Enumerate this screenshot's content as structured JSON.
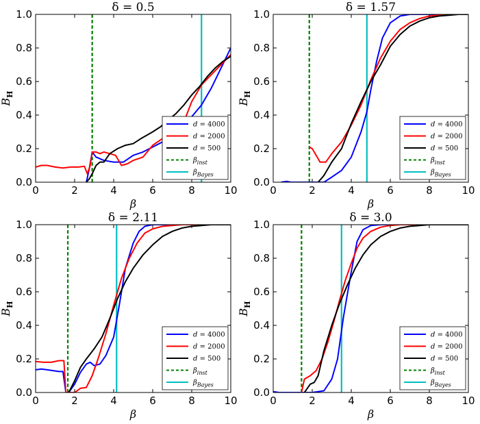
{
  "chart_data": [
    {
      "type": "line",
      "title": "δ = 0.5",
      "xlabel": "β",
      "ylabel": "B_H",
      "xlim": [
        0,
        10
      ],
      "ylim": [
        0,
        1
      ],
      "xticks": [
        "0",
        "2",
        "4",
        "6",
        "8",
        "10"
      ],
      "yticks": [
        "0.0",
        "0.2",
        "0.4",
        "0.6",
        "0.8",
        "1.0"
      ],
      "vlines": {
        "beta_inst": 2.9,
        "beta_bayes": 8.5
      },
      "legend": [
        "d = 4000",
        "d = 2000",
        "d = 500",
        "β_inst",
        "β_Bayes"
      ],
      "series": [
        {
          "name": "d = 4000",
          "x": [
            2.6,
            2.75,
            2.9,
            3.1,
            3.5,
            4.0,
            4.5,
            5.0,
            5.5,
            6.0,
            6.5,
            7.0,
            7.5,
            8.0,
            8.5,
            9.0,
            9.5,
            10.0
          ],
          "y": [
            0,
            0.08,
            0.18,
            0.15,
            0.13,
            0.12,
            0.12,
            0.16,
            0.18,
            0.21,
            0.24,
            0.28,
            0.33,
            0.39,
            0.46,
            0.56,
            0.68,
            0.8
          ]
        },
        {
          "name": "d = 2000",
          "x": [
            0,
            0.3,
            0.6,
            1.0,
            1.4,
            1.8,
            2.2,
            2.5,
            2.65,
            2.8,
            2.9,
            3.1,
            3.3,
            3.5,
            3.8,
            4.1,
            4.4,
            4.7,
            5.0,
            5.5,
            6.0,
            6.5,
            7.0,
            7.5,
            8.0,
            8.5,
            9.0,
            9.5,
            10.0
          ],
          "y": [
            0.09,
            0.1,
            0.1,
            0.09,
            0.085,
            0.09,
            0.09,
            0.095,
            0.05,
            0.1,
            0.18,
            0.18,
            0.17,
            0.18,
            0.17,
            0.16,
            0.1,
            0.11,
            0.13,
            0.15,
            0.22,
            0.26,
            0.28,
            0.33,
            0.48,
            0.58,
            0.64,
            0.7,
            0.76
          ]
        },
        {
          "name": "d = 500",
          "x": [
            2.6,
            2.75,
            2.9,
            3.1,
            3.3,
            3.5,
            3.8,
            4.2,
            4.6,
            5.0,
            5.4,
            5.7,
            6.0,
            6.4,
            6.8,
            7.2,
            7.6,
            8.0,
            8.4,
            8.8,
            9.2,
            9.6,
            10.0
          ],
          "y": [
            0,
            0.02,
            0.05,
            0.1,
            0.12,
            0.12,
            0.17,
            0.2,
            0.22,
            0.23,
            0.26,
            0.28,
            0.3,
            0.33,
            0.37,
            0.41,
            0.46,
            0.52,
            0.57,
            0.63,
            0.68,
            0.72,
            0.75
          ]
        }
      ]
    },
    {
      "type": "line",
      "title": "δ = 1.57",
      "xlabel": "β",
      "ylabel": "B_H",
      "xlim": [
        0,
        10
      ],
      "ylim": [
        0,
        1
      ],
      "xticks": [
        "0",
        "2",
        "4",
        "6",
        "8",
        "10"
      ],
      "yticks": [
        "0.0",
        "0.2",
        "0.4",
        "0.6",
        "0.8",
        "1.0"
      ],
      "vlines": {
        "beta_inst": 1.85,
        "beta_bayes": 4.8
      },
      "legend": [
        "d = 4000",
        "d = 2000",
        "d = 500",
        "β_inst",
        "β_Bayes"
      ],
      "series": [
        {
          "name": "d = 4000",
          "x": [
            0.4,
            0.7,
            0.9,
            2.6,
            3.0,
            3.5,
            4.0,
            4.5,
            4.8,
            5.0,
            5.3,
            5.6,
            6.0,
            6.5,
            7.0,
            7.5,
            8.0,
            9.0,
            10.0
          ],
          "y": [
            0,
            0.005,
            0,
            0,
            0.03,
            0.07,
            0.15,
            0.3,
            0.42,
            0.55,
            0.72,
            0.86,
            0.95,
            0.99,
            1.0,
            1.0,
            1.0,
            1.0,
            1.0
          ]
        },
        {
          "name": "d = 2000",
          "x": [
            1.85,
            2.0,
            2.2,
            2.4,
            2.7,
            3.0,
            3.5,
            4.0,
            4.5,
            5.0,
            5.5,
            6.0,
            6.5,
            7.0,
            7.5,
            8.0,
            8.5,
            9.0,
            9.5,
            10.0
          ],
          "y": [
            0.21,
            0.2,
            0.16,
            0.12,
            0.12,
            0.17,
            0.24,
            0.34,
            0.46,
            0.61,
            0.74,
            0.84,
            0.91,
            0.95,
            0.975,
            0.99,
            0.995,
            1.0,
            1.0,
            1.0
          ]
        },
        {
          "name": "d = 500",
          "x": [
            2.3,
            2.6,
            3.0,
            3.5,
            4.0,
            4.5,
            5.0,
            5.5,
            6.0,
            6.5,
            7.0,
            7.5,
            8.0,
            8.5,
            9.0,
            9.5,
            10.0
          ],
          "y": [
            0,
            0.04,
            0.12,
            0.2,
            0.35,
            0.48,
            0.6,
            0.7,
            0.81,
            0.88,
            0.93,
            0.96,
            0.98,
            0.99,
            0.995,
            1.0,
            1.0
          ]
        }
      ]
    },
    {
      "type": "line",
      "title": "δ = 2.11",
      "xlabel": "β",
      "ylabel": "B_H",
      "xlim": [
        0,
        10
      ],
      "ylim": [
        0,
        1
      ],
      "xticks": [
        "0",
        "2",
        "4",
        "6",
        "8",
        "10"
      ],
      "yticks": [
        "0.0",
        "0.2",
        "0.4",
        "0.6",
        "0.8",
        "1.0"
      ],
      "vlines": {
        "beta_inst": 1.65,
        "beta_bayes": 4.15
      },
      "legend": [
        "d = 4000",
        "d = 2000",
        "d = 500",
        "β_inst",
        "β_Bayes"
      ],
      "series": [
        {
          "name": "d = 4000",
          "x": [
            0,
            0.3,
            0.6,
            0.9,
            1.2,
            1.4,
            1.55,
            1.7,
            2.0,
            2.3,
            2.6,
            2.8,
            3.0,
            3.3,
            3.6,
            4.0,
            4.3,
            4.6,
            5.0,
            5.3,
            5.6,
            6.0,
            6.5,
            7.0,
            8.0,
            9.0,
            10.0
          ],
          "y": [
            0.135,
            0.14,
            0.135,
            0.13,
            0.125,
            0.125,
            0.0,
            0.0,
            0.05,
            0.12,
            0.17,
            0.18,
            0.16,
            0.17,
            0.22,
            0.33,
            0.53,
            0.74,
            0.89,
            0.96,
            0.99,
            1.0,
            1.0,
            1.0,
            1.0,
            1.0,
            1.0
          ]
        },
        {
          "name": "d = 2000",
          "x": [
            0,
            0.4,
            0.8,
            1.2,
            1.45,
            1.55,
            1.7,
            2.0,
            2.3,
            2.6,
            2.9,
            3.2,
            3.6,
            4.0,
            4.4,
            4.8,
            5.2,
            5.6,
            6.0,
            6.5,
            7.0,
            7.5,
            8.0,
            8.5,
            9.0,
            10.0
          ],
          "y": [
            0.185,
            0.18,
            0.18,
            0.19,
            0.19,
            0.0,
            0.0,
            0.0,
            0.025,
            0.03,
            0.1,
            0.2,
            0.35,
            0.52,
            0.68,
            0.8,
            0.89,
            0.95,
            0.975,
            0.99,
            0.995,
            1.0,
            1.0,
            1.0,
            1.0,
            1.0
          ]
        },
        {
          "name": "d = 500",
          "x": [
            1.7,
            2.0,
            2.3,
            2.6,
            3.0,
            3.4,
            3.8,
            4.2,
            4.6,
            5.0,
            5.5,
            6.0,
            6.5,
            7.0,
            7.5,
            8.0,
            8.5,
            9.0,
            9.5,
            10.0
          ],
          "y": [
            0.0,
            0.07,
            0.15,
            0.2,
            0.26,
            0.33,
            0.44,
            0.56,
            0.66,
            0.74,
            0.82,
            0.88,
            0.93,
            0.96,
            0.98,
            0.99,
            0.995,
            1.0,
            1.0,
            1.0
          ]
        }
      ]
    },
    {
      "type": "line",
      "title": "δ = 3.0",
      "xlabel": "β",
      "ylabel": "B_H",
      "xlim": [
        0,
        10
      ],
      "ylim": [
        0,
        1
      ],
      "xticks": [
        "0",
        "2",
        "4",
        "6",
        "8",
        "10"
      ],
      "yticks": [
        "0.0",
        "0.2",
        "0.4",
        "0.6",
        "0.8",
        "1.0"
      ],
      "vlines": {
        "beta_inst": 1.45,
        "beta_bayes": 3.5
      },
      "legend": [
        "d = 4000",
        "d = 2000",
        "d = 500",
        "β_inst",
        "β_Bayes"
      ],
      "series": [
        {
          "name": "d = 4000",
          "x": [
            0,
            0.3,
            0.6,
            1.0,
            1.5,
            2.0,
            2.3,
            2.6,
            3.0,
            3.3,
            3.6,
            4.0,
            4.3,
            4.6,
            5.0,
            5.5,
            6.0,
            7.0,
            8.0,
            10.0
          ],
          "y": [
            0.005,
            0.0,
            0.0,
            0.0,
            0.0,
            0.0,
            0.005,
            0.01,
            0.08,
            0.2,
            0.45,
            0.72,
            0.9,
            0.97,
            0.995,
            1.0,
            1.0,
            1.0,
            1.0,
            1.0
          ]
        },
        {
          "name": "d = 2000",
          "x": [
            1.45,
            1.6,
            1.9,
            2.2,
            2.5,
            2.8,
            3.1,
            3.4,
            3.7,
            4.0,
            4.3,
            4.6,
            5.0,
            5.5,
            6.0,
            6.5,
            7.0,
            8.0,
            9.0,
            10.0
          ],
          "y": [
            0.0,
            0.08,
            0.1,
            0.13,
            0.2,
            0.3,
            0.42,
            0.55,
            0.67,
            0.77,
            0.86,
            0.92,
            0.96,
            0.985,
            0.995,
            1.0,
            1.0,
            1.0,
            1.0,
            1.0
          ]
        },
        {
          "name": "d = 500",
          "x": [
            1.6,
            1.9,
            2.1,
            2.3,
            2.6,
            3.0,
            3.4,
            3.8,
            4.2,
            4.6,
            5.0,
            5.5,
            6.0,
            6.5,
            7.0,
            7.5,
            8.0,
            8.5,
            9.0,
            10.0
          ],
          "y": [
            0.0,
            0.05,
            0.06,
            0.1,
            0.25,
            0.4,
            0.53,
            0.64,
            0.74,
            0.82,
            0.88,
            0.93,
            0.96,
            0.98,
            0.99,
            0.995,
            1.0,
            1.0,
            1.0,
            1.0
          ]
        }
      ]
    }
  ],
  "colors": {
    "d4000": "#0000ff",
    "d2000": "#ff0000",
    "d500": "#000000",
    "beta_inst": "#008000",
    "beta_bayes": "#00bfbf"
  }
}
